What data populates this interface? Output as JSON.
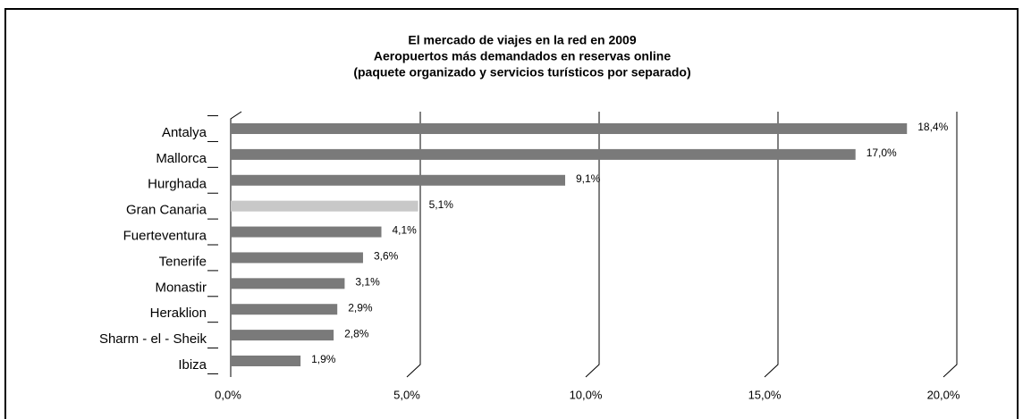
{
  "chart_data": {
    "type": "hbar",
    "title": [
      "El mercado de viajes en la red en 2009",
      "Aeropuertos más demandados en reservas online",
      "(paquete organizado y servicios turísticos por separado)"
    ],
    "categories": [
      "Antalya",
      "Mallorca",
      "Hurghada",
      "Gran Canaria",
      "Fuerteventura",
      "Tenerife",
      "Monastir",
      "Heraklion",
      "Sharm - el - Sheik",
      "Ibiza"
    ],
    "values": [
      18.4,
      17.0,
      9.1,
      5.1,
      4.1,
      3.6,
      3.1,
      2.9,
      2.8,
      1.9
    ],
    "value_labels": [
      "18,4%",
      "17,0%",
      "9,1%",
      "5,1%",
      "4,1%",
      "3,6%",
      "3,1%",
      "2,9%",
      "2,8%",
      "1,9%"
    ],
    "colors": [
      "#7a7a7a",
      "#7a7a7a",
      "#7a7a7a",
      "#c8c8c8",
      "#7a7a7a",
      "#7a7a7a",
      "#7a7a7a",
      "#7a7a7a",
      "#7a7a7a",
      "#7a7a7a"
    ],
    "xlim": [
      0,
      20
    ],
    "xticks": [
      {
        "value": 0,
        "label": "0,0%"
      },
      {
        "value": 5,
        "label": "5,0%"
      },
      {
        "value": 10,
        "label": "10,0%"
      },
      {
        "value": 15,
        "label": "15,0%"
      },
      {
        "value": 20,
        "label": "20,0%"
      }
    ],
    "grid": true
  }
}
